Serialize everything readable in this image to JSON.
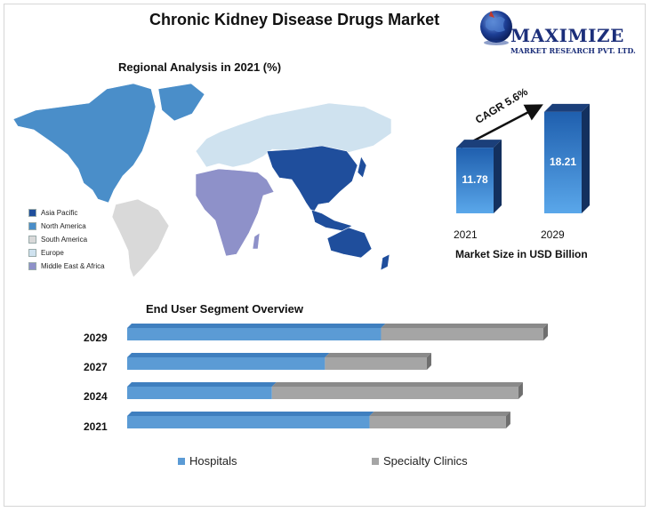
{
  "title": "Chronic Kidney Disease Drugs Market",
  "logo": {
    "name": "MAXIMIZE",
    "subtitle": "MARKET RESEARCH PVT. LTD.",
    "icon": "globe-icon"
  },
  "map": {
    "title": "Regional Analysis in 2021 (%)",
    "legend": [
      {
        "label": "Asia Pacific",
        "color": "#1f4e9c"
      },
      {
        "label": "North America",
        "color": "#4a8ec9"
      },
      {
        "label": "South America",
        "color": "#d9d9d9"
      },
      {
        "label": "Europe",
        "color": "#cfe2ef"
      },
      {
        "label": "Middle East & Africa",
        "color": "#8e91c9"
      }
    ]
  },
  "market_size": {
    "cagr_label": "CAGR 5.6%",
    "caption": "Market Size in USD Billion",
    "bars": [
      {
        "year": "2021",
        "value": "11.78"
      },
      {
        "year": "2029",
        "value": "18.21"
      }
    ]
  },
  "end_user": {
    "title": "End User  Segment Overview",
    "legend": [
      {
        "label": "Hospitals",
        "color": "#5b9bd5"
      },
      {
        "label": "Specialty Clinics",
        "color": "#a5a5a5"
      }
    ]
  },
  "chart_data": [
    {
      "type": "bar",
      "title": "Market Size in USD Billion",
      "annotation": "CAGR 5.6%",
      "categories": [
        "2021",
        "2029"
      ],
      "values": [
        11.78,
        18.21
      ],
      "ylim": [
        0,
        20
      ]
    },
    {
      "type": "bar",
      "orientation": "horizontal",
      "stacked": true,
      "title": "End User  Segment Overview",
      "categories": [
        "2029",
        "2027",
        "2024",
        "2021"
      ],
      "series": [
        {
          "name": "Hospitals",
          "values": [
            61,
            66,
            37,
            64
          ]
        },
        {
          "name": "Specialty Clinics",
          "values": [
            39,
            34,
            63,
            36
          ]
        }
      ],
      "total_scale": [
        100,
        72,
        94,
        91
      ],
      "legend": "bottom"
    }
  ]
}
